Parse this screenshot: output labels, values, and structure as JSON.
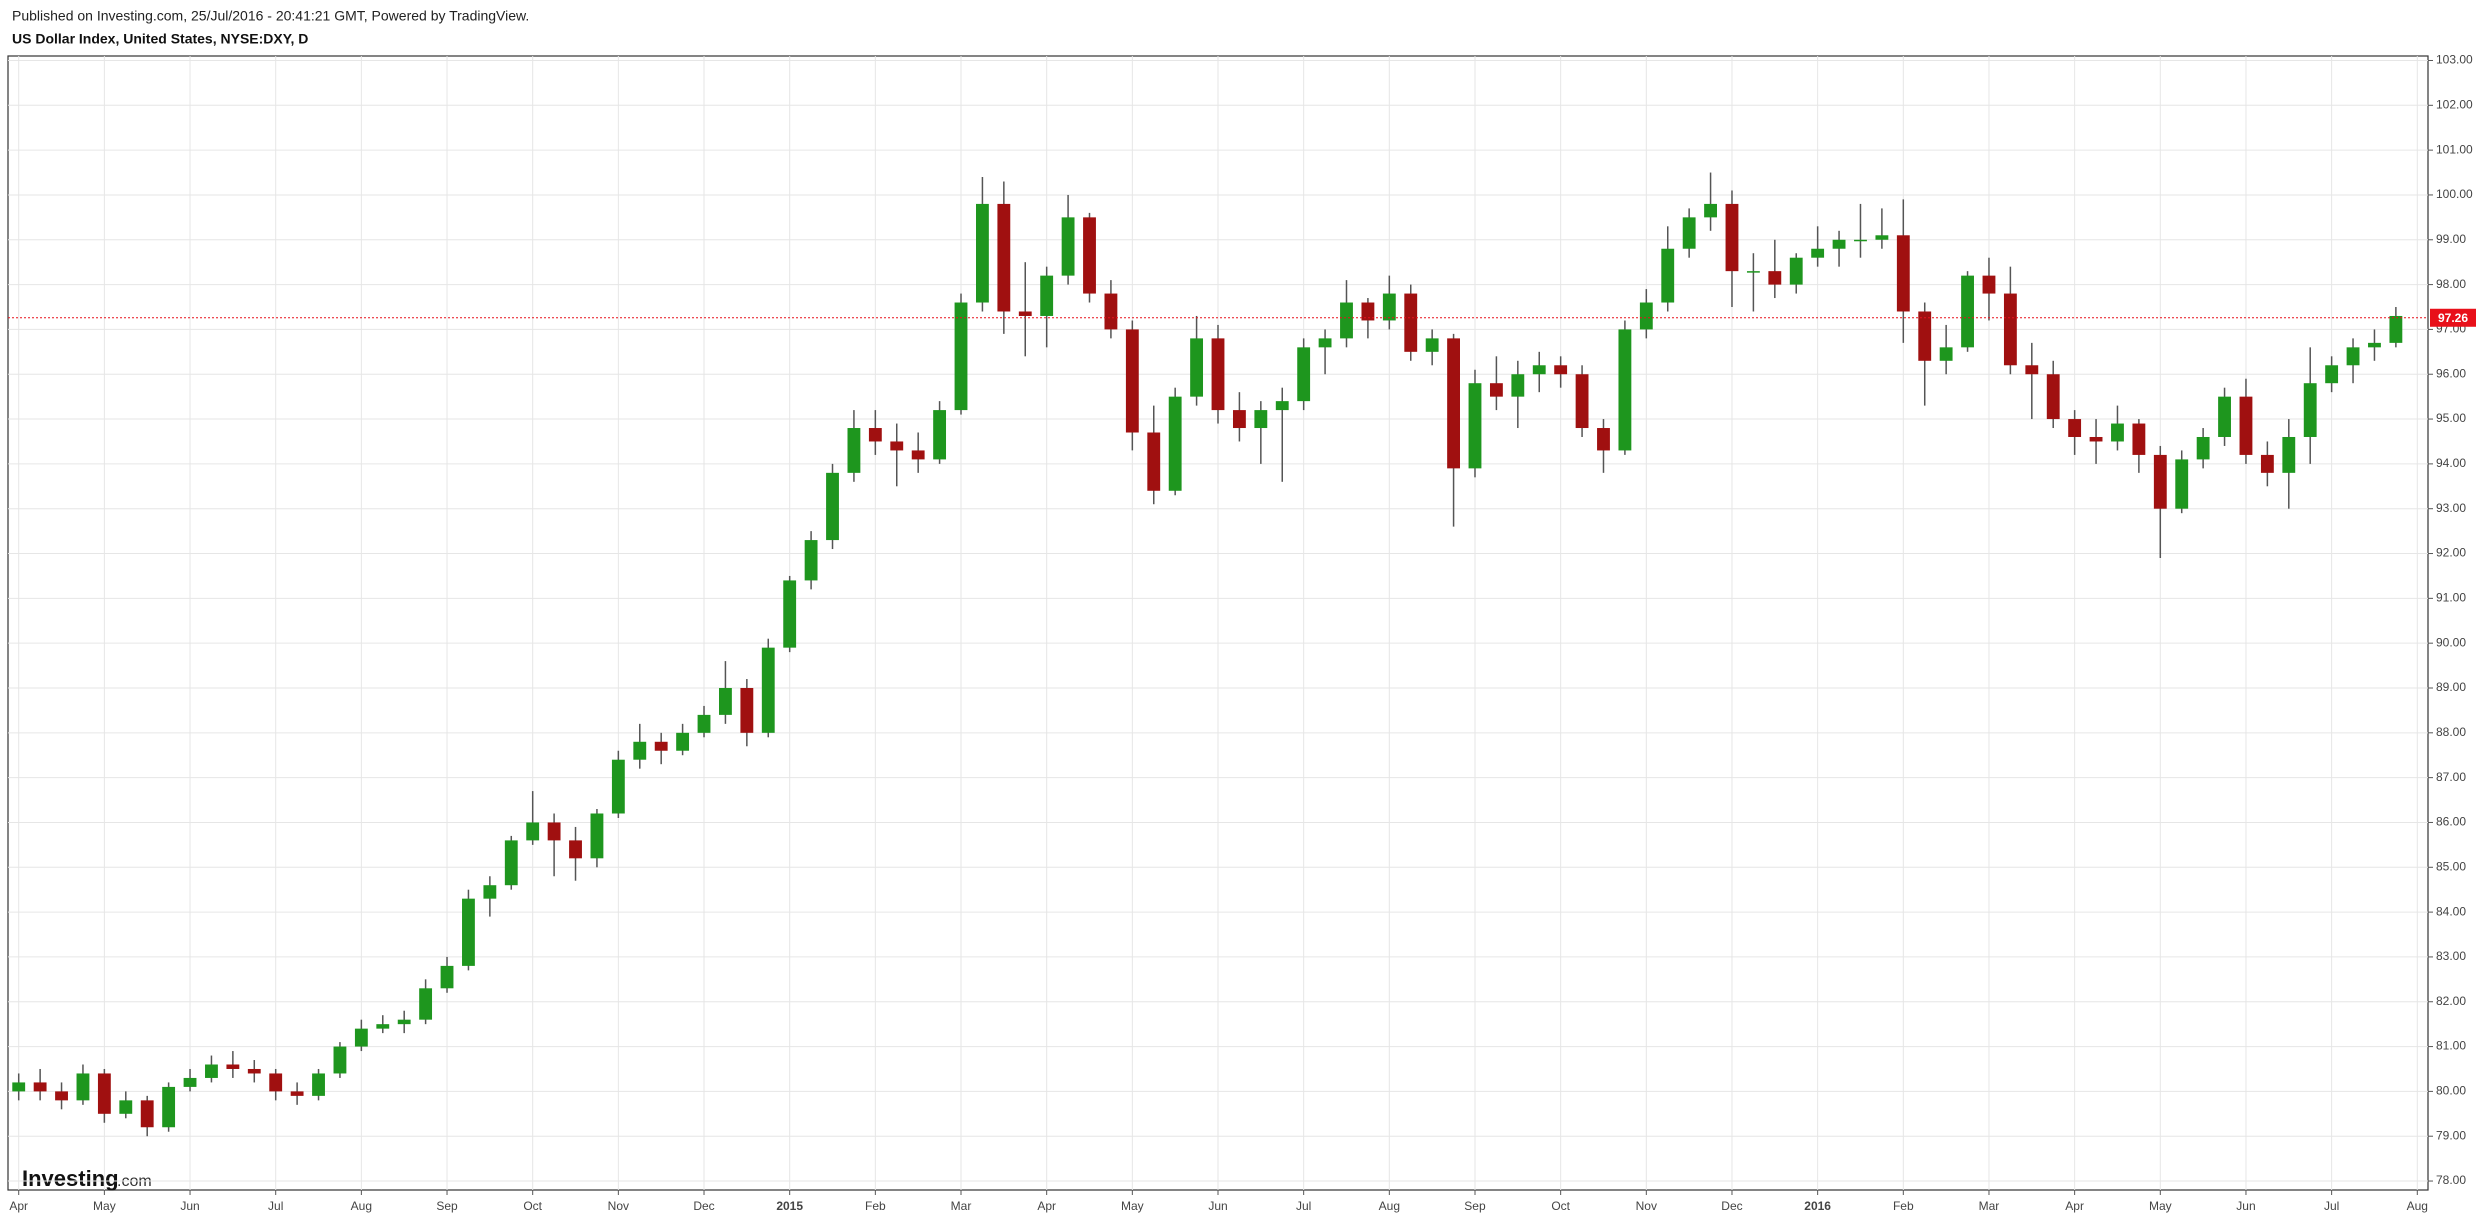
{
  "header": {
    "published": "Published on Investing.com, 25/Jul/2016 - 20:41:21 GMT, Powered by TradingView.",
    "title": "US Dollar Index, United States, NYSE:DXY, D"
  },
  "logo": {
    "name": "Investing",
    "suffix": ".com"
  },
  "chart_data": {
    "type": "candlestick",
    "up_color": "#1e961e",
    "down_color": "#a01010",
    "grid": true,
    "ylim": [
      77.8,
      103.1
    ],
    "yticks": [
      {
        "value": 78,
        "label": "78.00"
      },
      {
        "value": 79,
        "label": "79.00"
      },
      {
        "value": 80,
        "label": "80.00"
      },
      {
        "value": 81,
        "label": "81.00"
      },
      {
        "value": 82,
        "label": "82.00"
      },
      {
        "value": 83,
        "label": "83.00"
      },
      {
        "value": 84,
        "label": "84.00"
      },
      {
        "value": 85,
        "label": "85.00"
      },
      {
        "value": 86,
        "label": "86.00"
      },
      {
        "value": 87,
        "label": "87.00"
      },
      {
        "value": 88,
        "label": "88.00"
      },
      {
        "value": 89,
        "label": "89.00"
      },
      {
        "value": 90,
        "label": "90.00"
      },
      {
        "value": 91,
        "label": "91.00"
      },
      {
        "value": 92,
        "label": "92.00"
      },
      {
        "value": 93,
        "label": "93.00"
      },
      {
        "value": 94,
        "label": "94.00"
      },
      {
        "value": 95,
        "label": "95.00"
      },
      {
        "value": 96,
        "label": "96.00"
      },
      {
        "value": 97,
        "label": "97.00"
      },
      {
        "value": 98,
        "label": "98.00"
      },
      {
        "value": 99,
        "label": "99.00"
      },
      {
        "value": 100,
        "label": "100.00"
      },
      {
        "value": 101,
        "label": "101.00"
      },
      {
        "value": 102,
        "label": "102.00"
      },
      {
        "value": 103,
        "label": "103.00"
      }
    ],
    "xlabels": [
      {
        "value": 0,
        "label": "Apr"
      },
      {
        "value": 4,
        "label": "May"
      },
      {
        "value": 8,
        "label": "Jun"
      },
      {
        "value": 12,
        "label": "Jul"
      },
      {
        "value": 16,
        "label": "Aug"
      },
      {
        "value": 20,
        "label": "Sep"
      },
      {
        "value": 24,
        "label": "Oct"
      },
      {
        "value": 28,
        "label": "Nov"
      },
      {
        "value": 32,
        "label": "Dec"
      },
      {
        "value": 36,
        "label": "2015",
        "bold": true
      },
      {
        "value": 40,
        "label": "Feb"
      },
      {
        "value": 44,
        "label": "Mar"
      },
      {
        "value": 48,
        "label": "Apr"
      },
      {
        "value": 52,
        "label": "May"
      },
      {
        "value": 56,
        "label": "Jun"
      },
      {
        "value": 60,
        "label": "Jul"
      },
      {
        "value": 64,
        "label": "Aug"
      },
      {
        "value": 68,
        "label": "Sep"
      },
      {
        "value": 72,
        "label": "Oct"
      },
      {
        "value": 76,
        "label": "Nov"
      },
      {
        "value": 80,
        "label": "Dec"
      },
      {
        "value": 84,
        "label": "2016",
        "bold": true
      },
      {
        "value": 88,
        "label": "Feb"
      },
      {
        "value": 92,
        "label": "Mar"
      },
      {
        "value": 96,
        "label": "Apr"
      },
      {
        "value": 100,
        "label": "May"
      },
      {
        "value": 104,
        "label": "Jun"
      },
      {
        "value": 108,
        "label": "Jul"
      },
      {
        "value": 112,
        "label": "Aug"
      }
    ],
    "last_price": 97.26,
    "last_price_color": "#e8101a",
    "candles": [
      [
        80.0,
        80.4,
        79.8,
        80.2
      ],
      [
        80.2,
        80.5,
        79.8,
        80.0
      ],
      [
        80.0,
        80.2,
        79.6,
        79.8
      ],
      [
        79.8,
        80.6,
        79.7,
        80.4
      ],
      [
        80.4,
        80.5,
        79.3,
        79.5
      ],
      [
        79.5,
        80.0,
        79.4,
        79.8
      ],
      [
        79.8,
        79.9,
        79.0,
        79.2
      ],
      [
        79.2,
        80.2,
        79.1,
        80.1
      ],
      [
        80.1,
        80.5,
        80.0,
        80.3
      ],
      [
        80.3,
        80.8,
        80.2,
        80.6
      ],
      [
        80.6,
        80.9,
        80.3,
        80.5
      ],
      [
        80.5,
        80.7,
        80.2,
        80.4
      ],
      [
        80.4,
        80.5,
        79.8,
        80.0
      ],
      [
        80.0,
        80.2,
        79.7,
        79.9
      ],
      [
        79.9,
        80.5,
        79.8,
        80.4
      ],
      [
        80.4,
        81.1,
        80.3,
        81.0
      ],
      [
        81.0,
        81.6,
        80.9,
        81.4
      ],
      [
        81.4,
        81.7,
        81.3,
        81.5
      ],
      [
        81.5,
        81.8,
        81.3,
        81.6
      ],
      [
        81.6,
        82.5,
        81.5,
        82.3
      ],
      [
        82.3,
        83.0,
        82.2,
        82.8
      ],
      [
        82.8,
        84.5,
        82.7,
        84.3
      ],
      [
        84.3,
        84.8,
        83.9,
        84.6
      ],
      [
        84.6,
        85.7,
        84.5,
        85.6
      ],
      [
        85.6,
        86.7,
        85.5,
        86.0
      ],
      [
        86.0,
        86.2,
        84.8,
        85.6
      ],
      [
        85.6,
        85.9,
        84.7,
        85.2
      ],
      [
        85.2,
        86.3,
        85.0,
        86.2
      ],
      [
        86.2,
        87.6,
        86.1,
        87.4
      ],
      [
        87.4,
        88.2,
        87.2,
        87.8
      ],
      [
        87.8,
        88.0,
        87.3,
        87.6
      ],
      [
        87.6,
        88.2,
        87.5,
        88.0
      ],
      [
        88.0,
        88.6,
        87.9,
        88.4
      ],
      [
        88.4,
        89.6,
        88.2,
        89.0
      ],
      [
        89.0,
        89.2,
        87.7,
        88.0
      ],
      [
        88.0,
        90.1,
        87.9,
        89.9
      ],
      [
        89.9,
        91.5,
        89.8,
        91.4
      ],
      [
        91.4,
        92.5,
        91.2,
        92.3
      ],
      [
        92.3,
        94.0,
        92.1,
        93.8
      ],
      [
        93.8,
        95.2,
        93.6,
        94.8
      ],
      [
        94.8,
        95.2,
        94.2,
        94.5
      ],
      [
        94.5,
        94.9,
        93.5,
        94.3
      ],
      [
        94.3,
        94.7,
        93.8,
        94.1
      ],
      [
        94.1,
        95.4,
        94.0,
        95.2
      ],
      [
        95.2,
        97.8,
        95.1,
        97.6
      ],
      [
        97.6,
        100.4,
        97.4,
        99.8
      ],
      [
        99.8,
        100.3,
        96.9,
        97.4
      ],
      [
        97.4,
        98.5,
        96.4,
        97.3
      ],
      [
        97.3,
        98.4,
        96.6,
        98.2
      ],
      [
        98.2,
        100.0,
        98.0,
        99.5
      ],
      [
        99.5,
        99.6,
        97.6,
        97.8
      ],
      [
        97.8,
        98.1,
        96.8,
        97.0
      ],
      [
        97.0,
        97.2,
        94.3,
        94.7
      ],
      [
        94.7,
        95.3,
        93.1,
        93.4
      ],
      [
        93.4,
        95.7,
        93.3,
        95.5
      ],
      [
        95.5,
        97.3,
        95.3,
        96.8
      ],
      [
        96.8,
        97.1,
        94.9,
        95.2
      ],
      [
        95.2,
        95.6,
        94.5,
        94.8
      ],
      [
        94.8,
        95.4,
        94.0,
        95.2
      ],
      [
        95.2,
        95.7,
        93.6,
        95.4
      ],
      [
        95.4,
        96.8,
        95.2,
        96.6
      ],
      [
        96.6,
        97.0,
        96.0,
        96.8
      ],
      [
        96.8,
        98.1,
        96.6,
        97.6
      ],
      [
        97.6,
        97.7,
        96.8,
        97.2
      ],
      [
        97.2,
        98.2,
        97.0,
        97.8
      ],
      [
        97.8,
        98.0,
        96.3,
        96.5
      ],
      [
        96.5,
        97.0,
        96.2,
        96.8
      ],
      [
        96.8,
        96.9,
        92.6,
        93.9
      ],
      [
        93.9,
        96.1,
        93.7,
        95.8
      ],
      [
        95.8,
        96.4,
        95.2,
        95.5
      ],
      [
        95.5,
        96.3,
        94.8,
        96.0
      ],
      [
        96.0,
        96.5,
        95.6,
        96.2
      ],
      [
        96.2,
        96.4,
        95.7,
        96.0
      ],
      [
        96.0,
        96.2,
        94.6,
        94.8
      ],
      [
        94.8,
        95.0,
        93.8,
        94.3
      ],
      [
        94.3,
        97.2,
        94.2,
        97.0
      ],
      [
        97.0,
        97.9,
        96.8,
        97.6
      ],
      [
        97.6,
        99.3,
        97.4,
        98.8
      ],
      [
        98.8,
        99.7,
        98.6,
        99.5
      ],
      [
        99.5,
        100.5,
        99.2,
        99.8
      ],
      [
        99.8,
        100.1,
        97.5,
        98.3
      ],
      [
        98.3,
        98.7,
        97.4,
        98.3
      ],
      [
        98.3,
        99.0,
        97.7,
        98.0
      ],
      [
        98.0,
        98.7,
        97.8,
        98.6
      ],
      [
        98.6,
        99.3,
        98.4,
        98.8
      ],
      [
        98.8,
        99.2,
        98.4,
        99.0
      ],
      [
        99.0,
        99.8,
        98.6,
        99.0
      ],
      [
        99.0,
        99.7,
        98.8,
        99.1
      ],
      [
        99.1,
        99.9,
        96.7,
        97.4
      ],
      [
        97.4,
        97.6,
        95.3,
        96.3
      ],
      [
        96.3,
        97.1,
        96.0,
        96.6
      ],
      [
        96.6,
        98.3,
        96.5,
        98.2
      ],
      [
        98.2,
        98.6,
        97.2,
        97.8
      ],
      [
        97.8,
        98.4,
        96.0,
        96.2
      ],
      [
        96.2,
        96.7,
        95.0,
        96.0
      ],
      [
        96.0,
        96.3,
        94.8,
        95.0
      ],
      [
        95.0,
        95.2,
        94.2,
        94.6
      ],
      [
        94.6,
        95.0,
        94.0,
        94.5
      ],
      [
        94.5,
        95.3,
        94.3,
        94.9
      ],
      [
        94.9,
        95.0,
        93.8,
        94.2
      ],
      [
        94.2,
        94.4,
        91.9,
        93.0
      ],
      [
        93.0,
        94.3,
        92.9,
        94.1
      ],
      [
        94.1,
        94.8,
        93.9,
        94.6
      ],
      [
        94.6,
        95.7,
        94.4,
        95.5
      ],
      [
        95.5,
        95.9,
        94.0,
        94.2
      ],
      [
        94.2,
        94.5,
        93.5,
        93.8
      ],
      [
        93.8,
        95.0,
        93.0,
        94.6
      ],
      [
        94.6,
        96.6,
        94.0,
        95.8
      ],
      [
        95.8,
        96.4,
        95.6,
        96.2
      ],
      [
        96.2,
        96.8,
        95.8,
        96.6
      ],
      [
        96.6,
        97.0,
        96.3,
        96.7
      ],
      [
        96.7,
        97.5,
        96.6,
        97.3
      ]
    ]
  }
}
